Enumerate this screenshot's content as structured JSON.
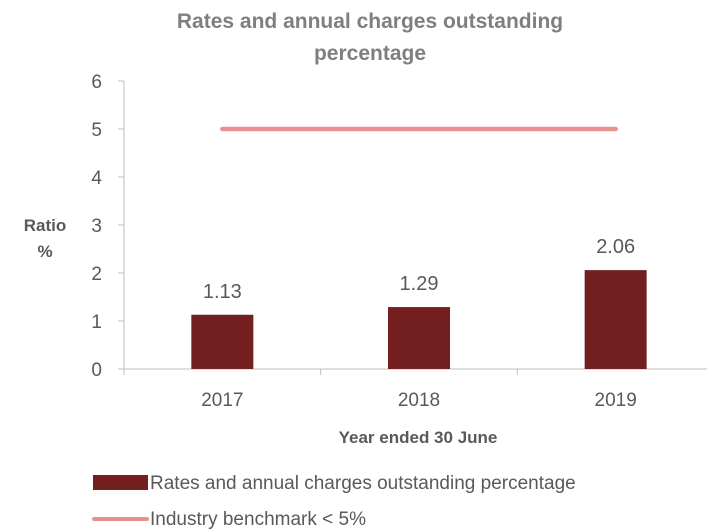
{
  "chart_data": {
    "type": "bar",
    "title_lines": [
      "Rates and annual charges outstanding",
      "percentage"
    ],
    "xlabel": "Year ended 30 June",
    "ylabel_lines": [
      "Ratio",
      "%"
    ],
    "categories": [
      "2017",
      "2018",
      "2019"
    ],
    "series": [
      {
        "name": "Rates and annual charges outstanding percentage",
        "type": "bar",
        "values": [
          1.13,
          1.29,
          2.06
        ],
        "data_labels": [
          "1.13",
          "1.29",
          "2.06"
        ],
        "color": "#741f1f"
      },
      {
        "name": "Industry benchmark < 5%",
        "type": "line",
        "values": [
          5,
          5,
          5
        ],
        "color": "#e8908f"
      }
    ],
    "ylim": [
      0,
      6
    ],
    "yticks": [
      "0",
      "1",
      "2",
      "3",
      "4",
      "5",
      "6"
    ],
    "grid": false,
    "legend_position": "bottom"
  }
}
